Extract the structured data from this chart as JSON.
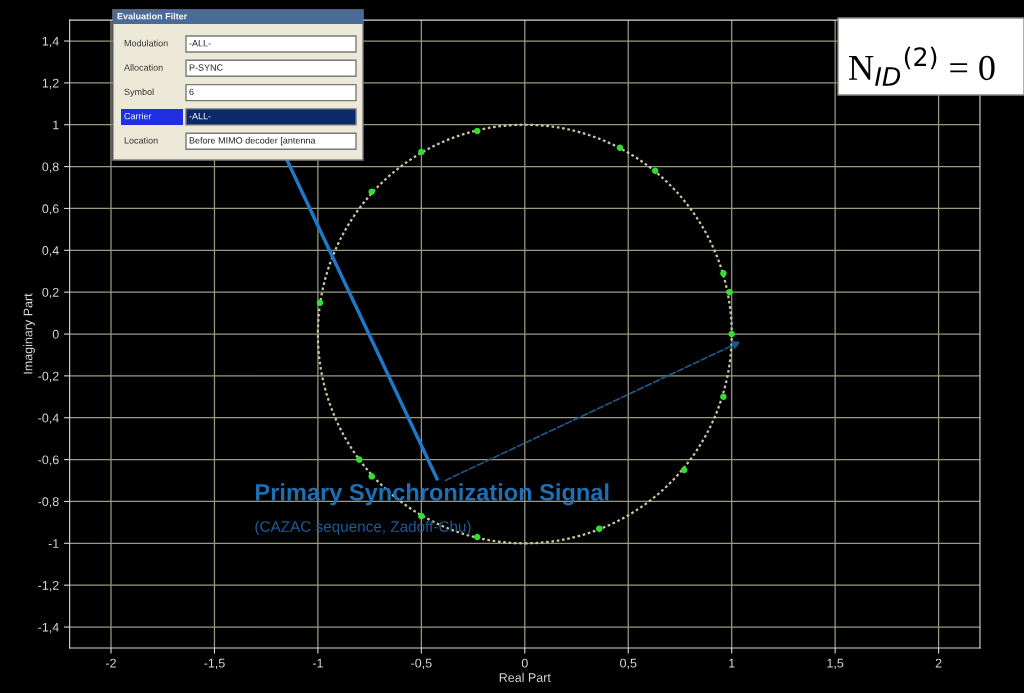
{
  "chart_data": {
    "type": "scatter",
    "title": "Primary Synchronization Signal",
    "subtitle": "(CAZAC sequence, Zadoff-Chu)",
    "xlabel": "Real Part",
    "ylabel": "Imaginary Part",
    "xlim": [
      -2.2,
      2.2
    ],
    "ylim": [
      -1.5,
      1.5
    ],
    "xticks": [
      {
        "value": -2,
        "label": "-2"
      },
      {
        "value": -1.5,
        "label": "-1,5"
      },
      {
        "value": -1,
        "label": "-1"
      },
      {
        "value": -0.5,
        "label": "-0,5"
      },
      {
        "value": 0,
        "label": "0"
      },
      {
        "value": 0.5,
        "label": "0,5"
      },
      {
        "value": 1,
        "label": "1"
      },
      {
        "value": 1.5,
        "label": "1,5"
      },
      {
        "value": 2,
        "label": "2"
      }
    ],
    "yticks": [
      {
        "value": -1.4,
        "label": "-1,4"
      },
      {
        "value": -1.2,
        "label": "-1,2"
      },
      {
        "value": -1,
        "label": "-1"
      },
      {
        "value": -0.8,
        "label": "-0,8"
      },
      {
        "value": -0.6,
        "label": "-0,6"
      },
      {
        "value": -0.4,
        "label": "-0,4"
      },
      {
        "value": -0.2,
        "label": "-0,2"
      },
      {
        "value": 0,
        "label": "0"
      },
      {
        "value": 0.2,
        "label": "0,2"
      },
      {
        "value": 0.4,
        "label": "0,4"
      },
      {
        "value": 0.6,
        "label": "0,6"
      },
      {
        "value": 0.8,
        "label": "0,8"
      },
      {
        "value": 1,
        "label": "1"
      },
      {
        "value": 1.2,
        "label": "1,2"
      },
      {
        "value": 1.4,
        "label": "1,4"
      }
    ],
    "grid": true,
    "legend": false,
    "series": [
      {
        "type": "scatter",
        "color": "#33dd33",
        "marker": "circle",
        "x": [
          -0.23,
          -0.5,
          -0.74,
          -0.99,
          0.46,
          0.63,
          0.96,
          0.99,
          1.0,
          0.96,
          0.77,
          0.36,
          -0.23,
          -0.5,
          -0.74,
          -0.8
        ],
        "values": [
          0.97,
          0.87,
          0.68,
          0.15,
          0.89,
          0.78,
          0.29,
          0.2,
          0,
          -0.3,
          -0.65,
          -0.93,
          -0.97,
          -0.87,
          -0.68,
          -0.6
        ]
      }
    ],
    "annotations": [
      "N$_{ID}$$^{(2)}$ = 0",
      "Evaluation Filter",
      "Modulation",
      "-ALL-",
      "Allocation",
      "P-SYNC",
      "Symbol",
      "6",
      "Carrier",
      "-ALL-",
      "Location",
      "Before MIMO decoder [antenna"
    ]
  }
}
